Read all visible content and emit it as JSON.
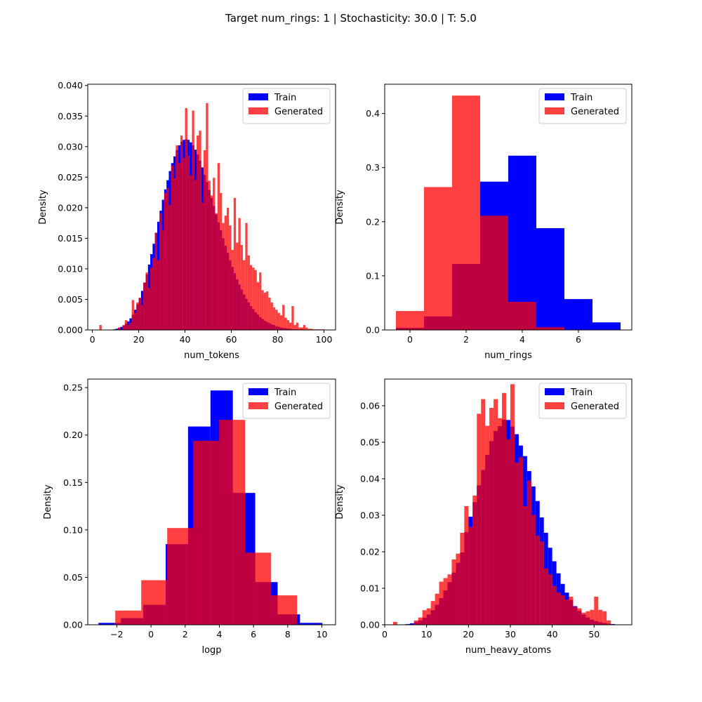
{
  "suptitle": "Target num_rings: 1 | Stochasticity: 30.0 | T: 5.0",
  "colors": {
    "train": "#0000ff",
    "generated": "#ff0000",
    "generated_alpha": 0.75
  },
  "chart_data": [
    {
      "type": "histogram",
      "xlabel": "num_tokens",
      "ylabel": "Density",
      "xlim": [
        -2,
        105
      ],
      "ylim": [
        0,
        0.0402
      ],
      "xticks": [
        0,
        20,
        40,
        60,
        80,
        100
      ],
      "yticks": [
        0.0,
        0.005,
        0.01,
        0.015,
        0.02,
        0.025,
        0.03,
        0.035,
        0.04
      ],
      "ytick_labels": [
        "0.000",
        "0.005",
        "0.010",
        "0.015",
        "0.020",
        "0.025",
        "0.030",
        "0.035",
        "0.040"
      ],
      "legend": "top-right",
      "legend_labels": [
        "Train",
        "Generated"
      ],
      "series": [
        {
          "name": "Train",
          "bin_start": 9,
          "bin_width": 1,
          "values": [
            0.0001,
            0.0002,
            0.0003,
            0.0005,
            0.0007,
            0.001,
            0.0014,
            0.0019,
            0.0025,
            0.0033,
            0.0042,
            0.0052,
            0.0064,
            0.0077,
            0.0091,
            0.0107,
            0.0124,
            0.0141,
            0.0159,
            0.0177,
            0.0195,
            0.0213,
            0.023,
            0.0245,
            0.026,
            0.0273,
            0.0284,
            0.0294,
            0.0302,
            0.0308,
            0.0311,
            0.0312,
            0.0311,
            0.0307,
            0.0302,
            0.0295,
            0.0287,
            0.0277,
            0.0266,
            0.0254,
            0.0242,
            0.0229,
            0.0216,
            0.0203,
            0.0189,
            0.0176,
            0.0163,
            0.015,
            0.0138,
            0.0126,
            0.0114,
            0.0103,
            0.0093,
            0.0083,
            0.0074,
            0.0066,
            0.0058,
            0.0051,
            0.0045,
            0.0039,
            0.0034,
            0.0029,
            0.0025,
            0.0021,
            0.0018,
            0.0015,
            0.0013,
            0.0011,
            0.0009,
            0.0008,
            0.0006,
            0.0005,
            0.0004,
            0.0003,
            0.0003,
            0.0002,
            0.0002,
            0.0001,
            0.0001,
            0.0001,
            0.0001,
            0.0001
          ]
        },
        {
          "name": "Generated",
          "bin_start": 3,
          "bin_width": 1,
          "values": [
            0.0008,
            0,
            0,
            0,
            0,
            0,
            0,
            0,
            0.0004,
            0,
            0.0008,
            0.0016,
            0.0008,
            0.0012,
            0.0049,
            0.0028,
            0.0045,
            0.0053,
            0.0041,
            0.0078,
            0.0094,
            0.0069,
            0.0102,
            0.0118,
            0.0159,
            0.0114,
            0.0191,
            0.0163,
            0.0224,
            0.0232,
            0.0204,
            0.0269,
            0.0248,
            0.0302,
            0.0273,
            0.0318,
            0.0281,
            0.0363,
            0.0285,
            0.0253,
            0.0359,
            0.0245,
            0.0318,
            0.0326,
            0.0208,
            0.0294,
            0.0371,
            0.0244,
            0.022,
            0.0249,
            0.0191,
            0.0273,
            0.0224,
            0.0175,
            0.0187,
            0.02,
            0.0171,
            0.0131,
            0.0216,
            0.0143,
            0.0183,
            0.0139,
            0.0114,
            0.0175,
            0.0122,
            0.0106,
            0.0102,
            0.0098,
            0.0078,
            0.0094,
            0.0065,
            0.0061,
            0.0063,
            0.0053,
            0.0045,
            0.0037,
            0.0033,
            0.0028,
            0.0024,
            0.0041,
            0.002,
            0.0016,
            0.0012,
            0.0039,
            0.0008,
            0.0012,
            0.0004,
            0.0004,
            0.0008,
            0.0004,
            0.0002,
            0.0002,
            0.0001,
            0.0001,
            0.0001,
            0.0001,
            0.0001
          ]
        }
      ]
    },
    {
      "type": "histogram",
      "xlabel": "num_rings",
      "ylabel": "Density",
      "xlim": [
        -0.9,
        7.9
      ],
      "ylim": [
        0,
        0.454
      ],
      "xticks": [
        0,
        2,
        4,
        6
      ],
      "yticks": [
        0.0,
        0.1,
        0.2,
        0.3,
        0.4
      ],
      "ytick_labels": [
        "0.0",
        "0.1",
        "0.2",
        "0.3",
        "0.4"
      ],
      "legend": "top-right",
      "legend_labels": [
        "Train",
        "Generated"
      ],
      "series": [
        {
          "name": "Train",
          "bin_start": -0.5,
          "bin_width": 1,
          "values": [
            0.004,
            0.025,
            0.122,
            0.274,
            0.322,
            0.188,
            0.057,
            0.014
          ]
        },
        {
          "name": "Generated",
          "bin_start": -0.5,
          "bin_width": 1,
          "values": [
            0.035,
            0.264,
            0.433,
            0.211,
            0.052,
            0.005,
            0,
            0
          ]
        }
      ]
    },
    {
      "type": "histogram",
      "xlabel": "logp",
      "ylabel": "Density",
      "xlim": [
        -3.7,
        10.8
      ],
      "ylim": [
        0,
        0.259
      ],
      "xticks": [
        -2,
        0,
        2,
        4,
        6,
        8,
        10
      ],
      "yticks": [
        0.0,
        0.05,
        0.1,
        0.15,
        0.2,
        0.25
      ],
      "ytick_labels": [
        "0.00",
        "0.05",
        "0.10",
        "0.15",
        "0.20",
        "0.25"
      ],
      "legend": "top-right",
      "legend_labels": [
        "Train",
        "Generated"
      ],
      "series": [
        {
          "name": "Train",
          "bin_edges": [
            -3.07,
            -1.76,
            -0.45,
            0.86,
            2.17,
            3.48,
            4.79,
            6.1,
            7.41,
            8.72,
            10.03
          ],
          "values": [
            0.002,
            0.007,
            0.021,
            0.085,
            0.209,
            0.247,
            0.139,
            0.045,
            0.011,
            0.002
          ]
        },
        {
          "name": "Generated",
          "bin_edges": [
            -2.09,
            -0.57,
            0.95,
            2.47,
            3.99,
            5.51,
            7.03,
            8.55
          ],
          "values": [
            0.015,
            0.047,
            0.102,
            0.194,
            0.216,
            0.076,
            0.031,
            0.008
          ]
        }
      ]
    },
    {
      "type": "histogram",
      "xlabel": "num_heavy_atoms",
      "ylabel": "Density",
      "xlim": [
        0,
        59
      ],
      "ylim": [
        0,
        0.0673
      ],
      "xticks": [
        0,
        10,
        20,
        30,
        40,
        50
      ],
      "yticks": [
        0.0,
        0.01,
        0.02,
        0.03,
        0.04,
        0.05,
        0.06
      ],
      "ytick_labels": [
        "0.00",
        "0.01",
        "0.02",
        "0.03",
        "0.04",
        "0.05",
        "0.06"
      ],
      "legend": "top-right",
      "legend_labels": [
        "Train",
        "Generated"
      ],
      "series": [
        {
          "name": "Train",
          "bin_start": 4,
          "bin_width": 1,
          "values": [
            0.0001,
            0.0002,
            0.0004,
            0.0007,
            0.0012,
            0.0019,
            0.0028,
            0.004,
            0.0055,
            0.0073,
            0.0094,
            0.0117,
            0.0143,
            0.017,
            0.0198,
            0.0254,
            0.0296,
            0.0336,
            0.0382,
            0.0424,
            0.0465,
            0.0503,
            0.0531,
            0.0544,
            0.0562,
            0.0561,
            0.0543,
            0.0522,
            0.0491,
            0.0462,
            0.0421,
            0.0379,
            0.0339,
            0.0294,
            0.0252,
            0.0211,
            0.0174,
            0.0141,
            0.0112,
            0.0088,
            0.0068,
            0.0051,
            0.0038,
            0.0028,
            0.002,
            0.0014,
            0.001,
            0.0007,
            0.0005,
            0.0003,
            0.0002
          ]
        },
        {
          "name": "Generated",
          "bin_start": 2,
          "bin_width": 1,
          "values": [
            0.0008,
            0,
            0,
            0,
            0,
            0.0012,
            0.002,
            0.004,
            0.0045,
            0.0065,
            0.0085,
            0.0118,
            0.0128,
            0.0138,
            0.0179,
            0.0195,
            0.0252,
            0.0325,
            0.0268,
            0.0354,
            0.0578,
            0.0618,
            0.0545,
            0.0594,
            0.0618,
            0.0566,
            0.0635,
            0.0508,
            0.0659,
            0.0444,
            0.0459,
            0.0325,
            0.0395,
            0.0301,
            0.0244,
            0.0228,
            0.0154,
            0.0138,
            0.0106,
            0.0089,
            0.0081,
            0.0069,
            0.0077,
            0.0049,
            0.0045,
            0.0033,
            0.0037,
            0.0041,
            0.0077,
            0.0041,
            0.0037,
            0.0012
          ]
        }
      ]
    }
  ]
}
